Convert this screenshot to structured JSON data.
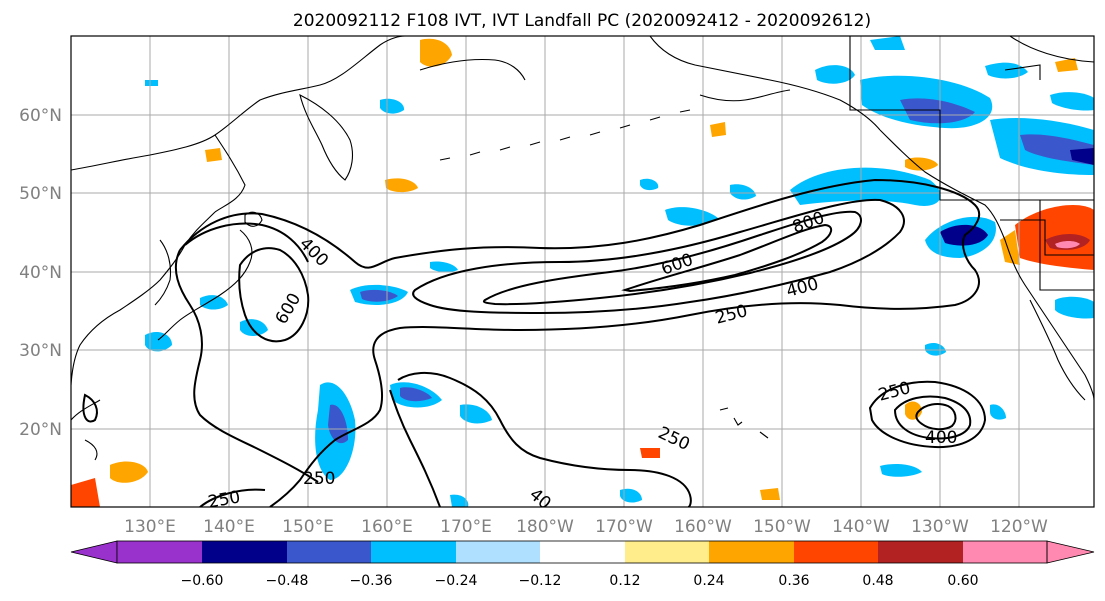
{
  "title": "2020092112 F108 IVT, IVT Landfall PC (2020092412 - 2020092612)",
  "lon_ticks": [
    "130°E",
    "140°E",
    "150°E",
    "160°E",
    "170°E",
    "180°W",
    "170°W",
    "160°W",
    "150°W",
    "140°W",
    "130°W",
    "120°W"
  ],
  "lat_ticks": [
    "20°N",
    "30°N",
    "40°N",
    "50°N",
    "60°N"
  ],
  "contour_labels": {
    "c400a": "400",
    "c600a": "600",
    "c600b": "600",
    "c800": "800",
    "c400b": "400",
    "c250a": "250",
    "c250b": "250",
    "c250c": "250",
    "c250d": "250",
    "c40": "40",
    "c250e": "250",
    "c400c": "400"
  },
  "colorbar": {
    "labels": [
      "−0.60",
      "−0.48",
      "−0.36",
      "−0.24",
      "−0.12",
      "0.12",
      "0.24",
      "0.36",
      "0.48",
      "0.60"
    ],
    "colors": [
      "#9932cc",
      "#00008b",
      "#3a58cc",
      "#00bfff",
      "#b0e0ff",
      "#ffffff",
      "#ffec8b",
      "#ffa500",
      "#ff4500",
      "#b22222",
      "#ff89b0"
    ]
  }
}
